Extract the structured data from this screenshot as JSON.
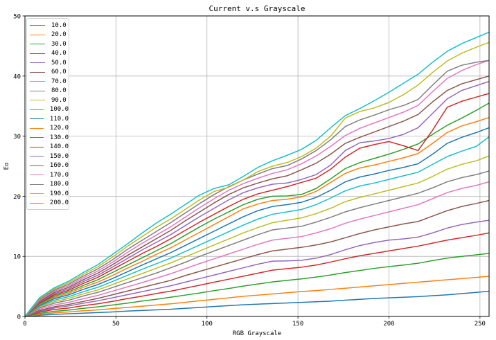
{
  "chart_data": {
    "type": "line",
    "title": "Current v.s Grayscale",
    "xlabel": "RGB Grayscale",
    "ylabel": "Eo",
    "xlim": [
      0,
      255
    ],
    "ylim": [
      0,
      50
    ],
    "x_ticks": [
      0,
      50,
      100,
      150,
      200,
      250
    ],
    "y_ticks": [
      0,
      10,
      20,
      30,
      40,
      50
    ],
    "grid": true,
    "legend_position": "top-left",
    "x": [
      0,
      8,
      16,
      24,
      32,
      40,
      48,
      56,
      64,
      72,
      80,
      88,
      96,
      104,
      112,
      120,
      128,
      136,
      144,
      152,
      160,
      168,
      176,
      184,
      192,
      200,
      208,
      216,
      224,
      232,
      240,
      248,
      255
    ],
    "series": [
      {
        "name": "10.0",
        "color": "#1f77b4",
        "values": [
          0,
          0.2,
          0.35,
          0.45,
          0.55,
          0.65,
          0.75,
          0.9,
          1.0,
          1.1,
          1.2,
          1.35,
          1.5,
          1.65,
          1.8,
          1.95,
          2.05,
          2.15,
          2.25,
          2.35,
          2.45,
          2.55,
          2.7,
          2.85,
          3.0,
          3.1,
          3.2,
          3.3,
          3.45,
          3.6,
          3.8,
          4.0,
          4.2
        ]
      },
      {
        "name": "20.0",
        "color": "#ff7f0e",
        "values": [
          0,
          0.35,
          0.6,
          0.75,
          0.95,
          1.1,
          1.3,
          1.5,
          1.7,
          1.9,
          2.1,
          2.35,
          2.6,
          2.85,
          3.1,
          3.35,
          3.55,
          3.75,
          3.95,
          4.15,
          4.3,
          4.5,
          4.7,
          4.9,
          5.1,
          5.3,
          5.5,
          5.7,
          5.9,
          6.1,
          6.3,
          6.5,
          6.7
        ]
      },
      {
        "name": "30.0",
        "color": "#2ca02c",
        "values": [
          0,
          0.5,
          0.85,
          1.05,
          1.35,
          1.6,
          1.9,
          2.2,
          2.55,
          2.85,
          3.2,
          3.55,
          3.9,
          4.3,
          4.65,
          5.05,
          5.4,
          5.75,
          6.0,
          6.25,
          6.55,
          6.9,
          7.3,
          7.65,
          8.0,
          8.3,
          8.55,
          8.85,
          9.3,
          9.7,
          10.0,
          10.25,
          10.5
        ]
      },
      {
        "name": "40.0",
        "color": "#d62728",
        "values": [
          0,
          0.7,
          1.15,
          1.4,
          1.8,
          2.1,
          2.5,
          2.95,
          3.35,
          3.8,
          4.2,
          4.7,
          5.2,
          5.7,
          6.2,
          6.7,
          7.2,
          7.7,
          7.95,
          8.2,
          8.55,
          9.05,
          9.6,
          10.1,
          10.5,
          10.9,
          11.3,
          11.7,
          12.2,
          12.7,
          13.1,
          13.5,
          13.9
        ]
      },
      {
        "name": "50.0",
        "color": "#9467bd",
        "values": [
          0,
          0.85,
          1.4,
          1.75,
          2.2,
          2.6,
          3.1,
          3.6,
          4.1,
          4.6,
          5.1,
          5.7,
          6.3,
          6.9,
          7.5,
          8.1,
          8.7,
          9.2,
          9.25,
          9.35,
          9.7,
          10.3,
          11.1,
          11.8,
          12.3,
          12.7,
          12.9,
          13.2,
          13.9,
          14.7,
          15.3,
          15.7,
          16.0
        ]
      },
      {
        "name": "60.0",
        "color": "#8c564b",
        "values": [
          0,
          1.0,
          1.6,
          2.0,
          2.5,
          3.0,
          3.6,
          4.2,
          4.8,
          5.4,
          6.0,
          6.8,
          7.5,
          8.2,
          8.9,
          9.6,
          10.3,
          10.9,
          11.2,
          11.5,
          11.9,
          12.4,
          13.1,
          13.8,
          14.4,
          14.9,
          15.4,
          15.8,
          16.7,
          17.6,
          18.3,
          18.8,
          19.3
        ]
      },
      {
        "name": "70.0",
        "color": "#e377c2",
        "values": [
          0,
          1.2,
          1.9,
          2.35,
          2.95,
          3.5,
          4.2,
          4.9,
          5.6,
          6.35,
          7.1,
          7.95,
          8.8,
          9.6,
          10.4,
          11.2,
          12.0,
          12.7,
          13.0,
          13.3,
          13.9,
          14.6,
          15.5,
          16.2,
          16.8,
          17.4,
          18.0,
          18.6,
          19.6,
          20.6,
          21.3,
          21.8,
          22.4
        ]
      },
      {
        "name": "80.0",
        "color": "#7f7f7f",
        "values": [
          0,
          1.4,
          2.2,
          2.7,
          3.4,
          4.0,
          4.8,
          5.6,
          6.4,
          7.2,
          8.1,
          9.0,
          10.0,
          10.9,
          11.8,
          12.7,
          13.6,
          14.4,
          14.7,
          15.0,
          15.7,
          16.5,
          17.4,
          18.1,
          18.7,
          19.3,
          19.9,
          20.5,
          21.4,
          22.4,
          23.1,
          23.6,
          24.2
        ]
      },
      {
        "name": "90.0",
        "color": "#bcbd22",
        "values": [
          0,
          1.55,
          2.45,
          3.0,
          3.75,
          4.4,
          5.3,
          6.2,
          7.1,
          8.0,
          8.9,
          9.9,
          10.9,
          11.9,
          12.9,
          13.9,
          14.8,
          15.6,
          16.0,
          16.4,
          17.1,
          18.0,
          19.1,
          19.8,
          20.4,
          21.0,
          21.6,
          22.2,
          23.3,
          24.5,
          25.3,
          25.9,
          26.7
        ]
      },
      {
        "name": "100.0",
        "color": "#17becf",
        "values": [
          0,
          1.7,
          2.7,
          3.3,
          4.1,
          4.85,
          5.8,
          6.8,
          7.8,
          8.75,
          9.7,
          10.8,
          11.9,
          13.0,
          14.1,
          15.2,
          16.2,
          17.0,
          17.4,
          17.8,
          18.6,
          19.7,
          20.9,
          21.7,
          22.2,
          22.8,
          23.4,
          24.0,
          25.3,
          26.6,
          27.5,
          28.3,
          29.9
        ]
      },
      {
        "name": "110.0",
        "color": "#1f77b4",
        "values": [
          0,
          1.85,
          2.95,
          3.6,
          4.5,
          5.3,
          6.3,
          7.4,
          8.5,
          9.55,
          10.6,
          11.8,
          13.0,
          14.2,
          15.4,
          16.6,
          17.6,
          18.3,
          18.6,
          19.0,
          19.8,
          21.0,
          22.4,
          23.2,
          23.7,
          24.3,
          24.8,
          25.4,
          27.0,
          28.8,
          29.8,
          30.6,
          31.4
        ]
      },
      {
        "name": "120.0",
        "color": "#ff7f0e",
        "values": [
          0,
          2.0,
          3.15,
          3.85,
          4.85,
          5.7,
          6.8,
          8.0,
          9.1,
          10.3,
          11.4,
          12.7,
          14.0,
          15.3,
          16.6,
          17.9,
          18.7,
          19.3,
          19.5,
          19.9,
          20.8,
          22.3,
          23.8,
          24.7,
          25.2,
          25.8,
          26.4,
          27.1,
          28.8,
          30.6,
          31.7,
          32.4,
          33.1
        ]
      },
      {
        "name": "130.0",
        "color": "#2ca02c",
        "values": [
          0,
          2.1,
          3.35,
          4.1,
          5.15,
          6.1,
          7.3,
          8.5,
          9.7,
          10.9,
          12.1,
          13.5,
          14.9,
          16.2,
          17.4,
          18.6,
          19.5,
          20.0,
          20.05,
          20.3,
          21.3,
          22.9,
          24.6,
          25.6,
          26.3,
          27.0,
          27.8,
          28.7,
          30.3,
          31.8,
          33.0,
          34.3,
          35.5
        ]
      },
      {
        "name": "140.0",
        "color": "#d62728",
        "values": [
          0,
          2.25,
          3.55,
          4.35,
          5.5,
          6.5,
          7.8,
          9.1,
          10.4,
          11.6,
          12.9,
          14.3,
          15.7,
          17.0,
          18.3,
          19.5,
          20.4,
          21.0,
          21.6,
          22.3,
          23.0,
          24.5,
          26.5,
          28.0,
          28.6,
          29.1,
          28.4,
          27.6,
          31.0,
          34.8,
          35.8,
          36.5,
          37.1
        ]
      },
      {
        "name": "150.0",
        "color": "#9467bd",
        "values": [
          0,
          2.4,
          3.75,
          4.6,
          5.8,
          6.85,
          8.2,
          9.6,
          11.0,
          12.3,
          13.6,
          15.1,
          16.6,
          18.0,
          19.4,
          20.6,
          21.4,
          22.0,
          22.2,
          22.8,
          23.6,
          25.2,
          27.6,
          28.9,
          29.2,
          29.6,
          30.3,
          31.4,
          33.8,
          36.2,
          37.6,
          38.4,
          39.1
        ]
      },
      {
        "name": "160.0",
        "color": "#8c564b",
        "values": [
          0,
          2.5,
          3.95,
          4.85,
          6.1,
          7.2,
          8.6,
          10.1,
          11.5,
          12.9,
          14.3,
          15.9,
          17.4,
          18.9,
          20.3,
          21.4,
          22.2,
          22.9,
          23.4,
          24.4,
          25.5,
          27.0,
          28.8,
          29.8,
          30.7,
          31.6,
          32.5,
          33.6,
          35.7,
          37.6,
          38.7,
          39.4,
          40.0
        ]
      },
      {
        "name": "170.0",
        "color": "#e377c2",
        "values": [
          0,
          2.65,
          4.15,
          5.1,
          6.4,
          7.55,
          9.0,
          10.6,
          12.1,
          13.5,
          14.9,
          16.5,
          18.1,
          19.6,
          21.0,
          22.1,
          23.0,
          23.8,
          24.4,
          25.4,
          26.7,
          28.3,
          30.1,
          31.3,
          32.2,
          33.1,
          34.0,
          35.1,
          37.4,
          39.6,
          40.9,
          41.9,
          42.6
        ]
      },
      {
        "name": "180.0",
        "color": "#7f7f7f",
        "values": [
          0,
          2.8,
          4.35,
          5.35,
          6.7,
          7.9,
          9.4,
          11.1,
          12.6,
          14.1,
          15.6,
          17.2,
          18.8,
          20.3,
          21.6,
          22.7,
          23.7,
          24.6,
          25.1,
          26.2,
          27.6,
          29.4,
          31.6,
          32.7,
          33.5,
          34.4,
          35.1,
          36.1,
          38.5,
          40.8,
          41.8,
          42.3,
          42.6
        ]
      },
      {
        "name": "190.0",
        "color": "#bcbd22",
        "values": [
          0,
          2.95,
          4.55,
          5.6,
          7.0,
          8.25,
          9.85,
          11.6,
          13.2,
          14.8,
          16.2,
          17.8,
          19.4,
          20.8,
          21.5,
          22.7,
          24.1,
          25.0,
          25.6,
          26.6,
          28.0,
          30.0,
          33.0,
          34.1,
          34.7,
          35.6,
          36.9,
          38.5,
          40.6,
          42.5,
          43.8,
          44.8,
          45.6
        ]
      },
      {
        "name": "200.0",
        "color": "#17becf",
        "values": [
          0,
          3.1,
          4.75,
          5.85,
          7.3,
          8.6,
          10.3,
          12.0,
          13.8,
          15.5,
          17.0,
          18.6,
          20.2,
          21.3,
          21.9,
          23.3,
          24.8,
          25.9,
          26.8,
          27.8,
          29.3,
          31.4,
          33.4,
          34.6,
          35.9,
          37.3,
          38.8,
          40.3,
          42.3,
          44.1,
          45.4,
          46.4,
          47.3
        ]
      }
    ]
  }
}
